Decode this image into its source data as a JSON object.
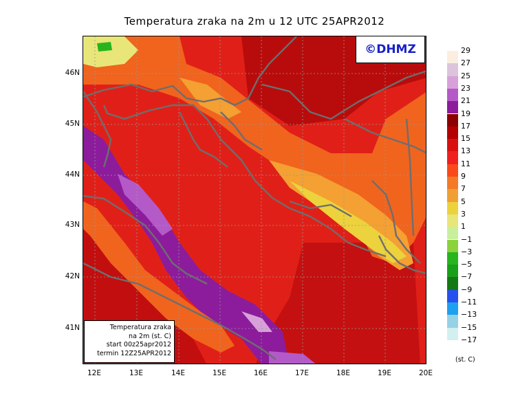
{
  "title": "Temperatura zraka na 2m u 12 UTC 25APR2012",
  "logo_text": "©DHMZ",
  "info_box": {
    "line1": "Temperatura zraka",
    "line2": "na 2m (st. C)",
    "line3": "start 00z25apr2012",
    "line4": "termin 12Z25APR2012"
  },
  "lat_labels": [
    "46N",
    "45N",
    "44N",
    "43N",
    "42N",
    "41N"
  ],
  "lon_labels": [
    "12E",
    "13E",
    "14E",
    "15E",
    "16E",
    "17E",
    "18E",
    "19E",
    "20E"
  ],
  "legend": {
    "unit": "(st. C)",
    "labels": [
      "29",
      "27",
      "25",
      "23",
      "21",
      "19",
      "17",
      "15",
      "13",
      "11",
      "9",
      "7",
      "5",
      "3",
      "1",
      "-1",
      "-3",
      "-5",
      "-7",
      "-9",
      "-11",
      "-13",
      "-15",
      "-17"
    ],
    "colors": [
      "#fbeee0",
      "#dcc4dc",
      "#d8a0d8",
      "#b45ac8",
      "#8c1c9c",
      "#8c0000",
      "#b40000",
      "#d81010",
      "#f02020",
      "#fa4a1a",
      "#f47a28",
      "#f0a032",
      "#ecd23c",
      "#e8e678",
      "#c8f09c",
      "#8cd23c",
      "#28b41e",
      "#18a018",
      "#147814",
      "#2850f0",
      "#1ea0f0",
      "#96d2e6",
      "#d2f0f0",
      "#ffffff"
    ],
    "colors_note_only": true
  },
  "map": {
    "region": "Adriatic / Croatia",
    "field": "2 m air temperature",
    "units": "st. C"
  }
}
